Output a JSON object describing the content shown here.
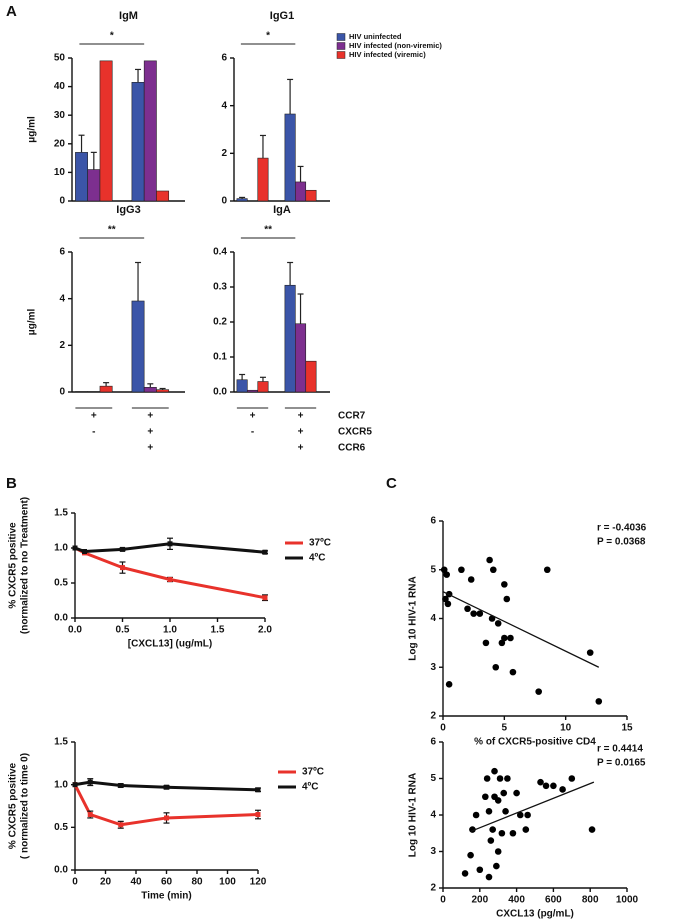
{
  "panel_labels": [
    "A",
    "B",
    "C"
  ],
  "marker_table": {
    "rows": [
      {
        "label": "CCR7",
        "signs": [
          "+",
          "+"
        ]
      },
      {
        "label": "CXCR5",
        "signs": [
          "-",
          "+"
        ]
      },
      {
        "label": "CCR6",
        "signs": [
          null,
          "+"
        ]
      }
    ]
  },
  "chart_data": [
    {
      "type": "bar",
      "title": "IgM",
      "y_label": [
        "μg/ml"
      ],
      "categories": [
        null,
        null
      ],
      "ylim": [
        0,
        50
      ],
      "yticks": [
        0,
        10,
        20,
        30,
        40,
        50
      ],
      "significance": "*",
      "series": [
        {
          "name": "HIV uninfected",
          "color": "#3b55a8",
          "values": [
            17,
            41.5
          ],
          "errors": [
            6,
            4.5
          ]
        },
        {
          "name": "HIV infected (non-viremic)",
          "color": "#7d2f8f",
          "values": [
            11,
            49
          ],
          "errors": [
            6,
            null
          ]
        },
        {
          "name": "HIV infected (viremic)",
          "color": "#e8322b",
          "values": [
            49,
            3.5
          ],
          "errors": [
            null,
            null
          ]
        }
      ]
    },
    {
      "type": "bar",
      "title": "IgG1",
      "categories": [
        null,
        null
      ],
      "ylim": [
        0,
        6
      ],
      "yticks": [
        0,
        2,
        4,
        6
      ],
      "significance": "*",
      "series": [
        {
          "color": "#3b55a8",
          "values": [
            0.1,
            3.65
          ],
          "errors": [
            0.05,
            1.45
          ]
        },
        {
          "color": "#7d2f8f",
          "values": [
            0,
            0.8
          ],
          "errors": [
            null,
            0.65
          ]
        },
        {
          "color": "#e8322b",
          "values": [
            1.8,
            0.45
          ],
          "errors": [
            0.95,
            null
          ]
        }
      ]
    },
    {
      "type": "bar",
      "title": "IgG3",
      "y_label": [
        "μg/ml"
      ],
      "categories": [
        null,
        null
      ],
      "ylim": [
        0,
        6
      ],
      "yticks": [
        0,
        2,
        4,
        6
      ],
      "significance": "**",
      "series": [
        {
          "color": "#3b55a8",
          "values": [
            0.02,
            3.9
          ],
          "errors": [
            null,
            1.65
          ]
        },
        {
          "color": "#7d2f8f",
          "values": [
            0.02,
            0.2
          ],
          "errors": [
            null,
            0.15
          ]
        },
        {
          "color": "#e8322b",
          "values": [
            0.25,
            0.1
          ],
          "errors": [
            0.15,
            0.05
          ]
        }
      ]
    },
    {
      "type": "bar",
      "title": "IgA",
      "categories": [
        null,
        null
      ],
      "ylim": [
        0,
        0.4
      ],
      "yticks": [
        {
          "value": 0,
          "label": "0.0"
        },
        0.1,
        0.2,
        0.3,
        0.4
      ],
      "significance": "**",
      "series": [
        {
          "color": "#3b55a8",
          "values": [
            0.035,
            0.305
          ],
          "errors": [
            0.015,
            0.065
          ]
        },
        {
          "color": "#7d2f8f",
          "values": [
            0.005,
            0.195
          ],
          "errors": [
            null,
            0.085
          ]
        },
        {
          "color": "#e8322b",
          "values": [
            0.03,
            0.088
          ],
          "errors": [
            0.012,
            null
          ]
        }
      ]
    },
    {
      "type": "line",
      "y_label": [
        "% CXCR5 positive",
        "(normalized to no Treatment)"
      ],
      "x_label": "[CXCL13] (ug/mL)",
      "x": [
        0,
        0.1,
        0.5,
        1,
        2
      ],
      "xlim": [
        0,
        2
      ],
      "xticks": [
        {
          "value": 0,
          "label": "0.0"
        },
        0.5,
        {
          "value": 1,
          "label": "1.0"
        },
        1.5,
        {
          "value": 2,
          "label": "2.0"
        }
      ],
      "ylim": [
        0,
        1.5
      ],
      "yticks": [
        {
          "value": 0,
          "label": "0.0"
        },
        0.5,
        {
          "value": 1,
          "label": "1.0"
        },
        1.5
      ],
      "legend": "right",
      "series": [
        {
          "name": "37ºC",
          "color": "#e8322b",
          "values": [
            1.0,
            0.93,
            0.72,
            0.55,
            0.29
          ],
          "errors": [
            null,
            null,
            0.08,
            0.03,
            0.04
          ]
        },
        {
          "name": "4ºC",
          "color": "#111111",
          "values": [
            1.0,
            0.95,
            0.98,
            1.06,
            0.94
          ],
          "errors": [
            null,
            null,
            0.02,
            0.08,
            0.02
          ]
        }
      ]
    },
    {
      "type": "line",
      "y_label": [
        "% CXCR5 positive",
        "( normalized to time 0)"
      ],
      "x_label": "Time (min)",
      "x": [
        0,
        10,
        30,
        60,
        120
      ],
      "xlim": [
        0,
        120
      ],
      "xticks": [
        0,
        20,
        40,
        60,
        80,
        100,
        120
      ],
      "ylim": [
        0,
        1.5
      ],
      "yticks": [
        {
          "value": 0,
          "label": "0.0"
        },
        0.5,
        {
          "value": 1,
          "label": "1.0"
        },
        1.5
      ],
      "legend": "right",
      "series": [
        {
          "name": "37ºC",
          "color": "#e8322b",
          "values": [
            1.0,
            0.65,
            0.53,
            0.61,
            0.65
          ],
          "errors": [
            null,
            0.04,
            0.04,
            0.06,
            0.05
          ]
        },
        {
          "name": "4ºC",
          "color": "#111111",
          "values": [
            1.0,
            1.03,
            0.99,
            0.97,
            0.94
          ],
          "errors": [
            null,
            0.04,
            0.02,
            0.02,
            0.02
          ]
        }
      ]
    },
    {
      "type": "scatter",
      "y_label": [
        "Log 10 HIV-1 RNA"
      ],
      "x_label": "% of CXCR5-positive CD4",
      "annotations": [
        "r = -0.4036",
        "P = 0.0368"
      ],
      "color": "#000000",
      "xlim": [
        0,
        15
      ],
      "xticks": [
        0,
        5,
        10,
        15
      ],
      "ylim": [
        2,
        6
      ],
      "yticks": [
        2,
        3,
        4,
        5,
        6
      ],
      "x": [
        0.1,
        0.3,
        0.5,
        0.2,
        0.4,
        0.5,
        1.5,
        2.0,
        2.5,
        2.3,
        3.0,
        3.5,
        3.8,
        4.0,
        4.1,
        4.3,
        4.5,
        4.8,
        5.0,
        5.2,
        5.0,
        5.5,
        5.7,
        7.8,
        8.5,
        12.0,
        12.7
      ],
      "values": [
        5.0,
        4.9,
        4.5,
        4.4,
        4.3,
        2.65,
        5.0,
        4.2,
        4.1,
        4.8,
        4.1,
        3.5,
        5.2,
        4.0,
        5.0,
        3.0,
        3.9,
        3.5,
        4.7,
        4.4,
        3.6,
        3.6,
        2.9,
        2.5,
        5.0,
        3.3,
        2.3
      ],
      "trend": {
        "x": [
          0,
          12.7
        ],
        "values": [
          4.55,
          3.0
        ]
      }
    },
    {
      "type": "scatter",
      "y_label": [
        "Log 10 HIV-1 RNA"
      ],
      "x_label": "CXCL13 (pg/mL)",
      "annotations": [
        "r = 0.4414",
        "P = 0.0165"
      ],
      "color": "#000000",
      "xlim": [
        0,
        1000
      ],
      "xticks": [
        0,
        200,
        400,
        600,
        800,
        1000
      ],
      "ylim": [
        2,
        6
      ],
      "yticks": [
        2,
        3,
        4,
        5,
        6
      ],
      "x": [
        120,
        150,
        160,
        180,
        200,
        230,
        240,
        250,
        250,
        260,
        270,
        280,
        280,
        290,
        300,
        300,
        310,
        320,
        330,
        340,
        350,
        380,
        400,
        420,
        450,
        460,
        530,
        560,
        600,
        650,
        700,
        810
      ],
      "values": [
        2.4,
        2.9,
        3.6,
        4.0,
        2.5,
        4.5,
        5.0,
        4.1,
        2.3,
        3.3,
        3.6,
        4.5,
        5.2,
        2.6,
        3.0,
        4.4,
        5.0,
        3.5,
        4.6,
        4.1,
        5.0,
        3.5,
        4.6,
        4.0,
        3.6,
        4.0,
        4.9,
        4.8,
        4.8,
        4.7,
        5.0,
        3.6
      ],
      "trend": {
        "x": [
          150,
          820
        ],
        "values": [
          3.55,
          4.9
        ]
      }
    }
  ]
}
